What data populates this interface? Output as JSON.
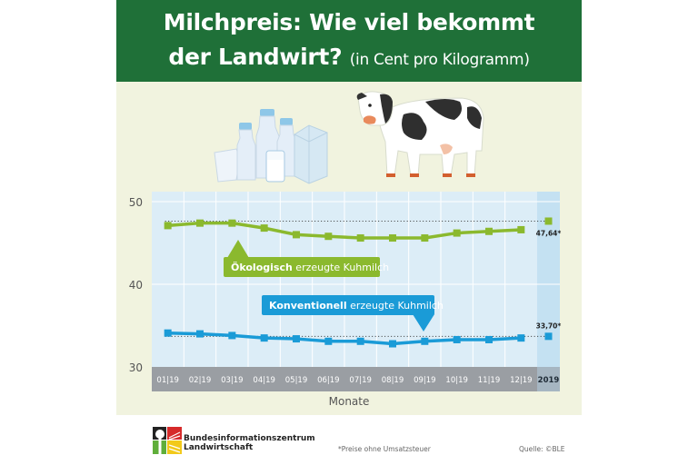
{
  "header": {
    "title_line1": "Milchpreis: Wie viel bekommt",
    "title_line2": "der Landwirt?",
    "subtitle": "(in Cent pro Kilogramm)"
  },
  "colors": {
    "header_bg": "#1f7038",
    "page_bg": "#f1f3df",
    "plot_bg": "#dcedf7",
    "highlight_col": "#c4e1f2",
    "oeko": "#8bb92e",
    "konv": "#1a9bd7",
    "axis_bar": "#9a9ea3"
  },
  "illustration": {
    "left": "milk-products-icon",
    "right": "cow-icon"
  },
  "chart_data": {
    "type": "line",
    "title": "Milchpreis: Wie viel bekommt der Landwirt? (in Cent pro Kilogramm)",
    "xlabel": "Monate",
    "ylabel": "Cent pro Kilogramm",
    "categories": [
      "01|19",
      "02|19",
      "03|19",
      "04|19",
      "05|19",
      "06|19",
      "07|19",
      "08|19",
      "09|19",
      "10|19",
      "11|19",
      "12|19",
      "2019"
    ],
    "yticks": [
      30,
      40,
      50
    ],
    "ylim": [
      30,
      50
    ],
    "grid": true,
    "series": [
      {
        "name": "Ökologisch erzeugte Kuhmilch",
        "name_bold": "Ökologisch",
        "name_rest": " erzeugte Kuhmilch",
        "color": "#8bb92e",
        "values": [
          47.1,
          47.4,
          47.4,
          46.8,
          46.0,
          45.8,
          45.6,
          45.6,
          45.6,
          46.2,
          46.4,
          46.6
        ],
        "annual_average": 47.64,
        "annual_label": "47,64*"
      },
      {
        "name": "Konventionell erzeugte Kuhmilch",
        "name_bold": "Konventionell",
        "name_rest": " erzeugte Kuhmilch",
        "color": "#1a9bd7",
        "values": [
          34.1,
          34.0,
          33.8,
          33.5,
          33.4,
          33.1,
          33.1,
          32.8,
          33.1,
          33.3,
          33.3,
          33.5
        ],
        "annual_average": 33.7,
        "annual_label": "33,70*"
      }
    ],
    "annotations": [
      "47,64*",
      "33,70*"
    ]
  },
  "footer": {
    "org_line1": "Bundesinformationszentrum",
    "org_line2": "Landwirtschaft",
    "note": "*Preise ohne Umsatzsteuer",
    "source": "Quelle: ©BLE"
  }
}
